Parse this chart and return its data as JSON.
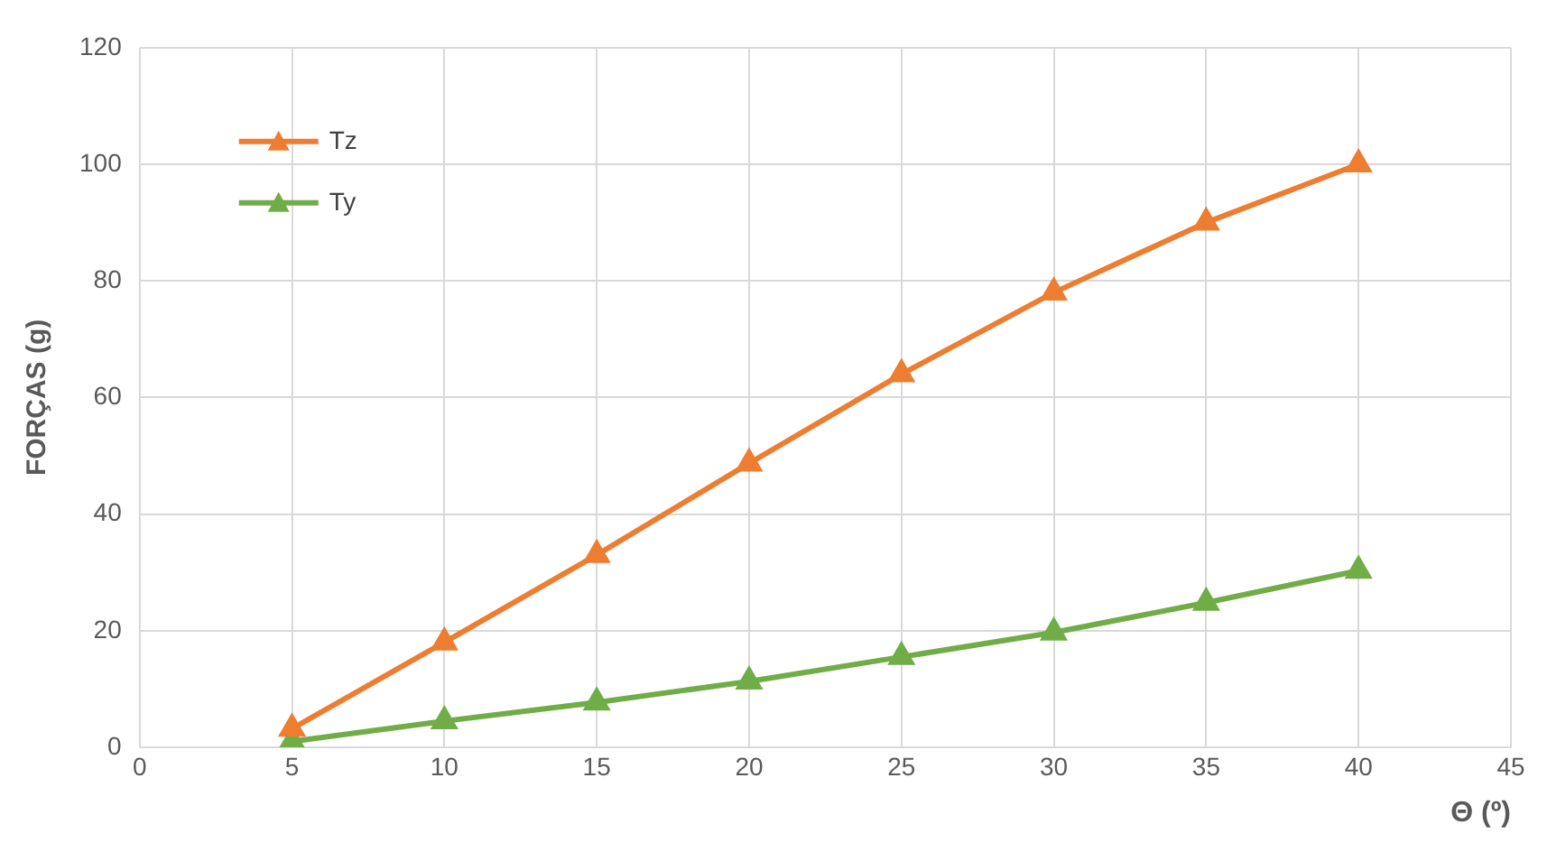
{
  "chart_data": {
    "type": "line",
    "ylabel": "FORÇAS (g)",
    "xlabel": "Θ (º)",
    "x": [
      5,
      10,
      15,
      20,
      25,
      30,
      35,
      40
    ],
    "series": [
      {
        "name": "Tz",
        "color": "#ed7d31",
        "values": [
          3.2,
          18,
          33,
          48.7,
          64,
          78,
          90,
          100
        ]
      },
      {
        "name": "Ty",
        "color": "#70ad47",
        "values": [
          1,
          4.5,
          7.7,
          11.3,
          15.5,
          19.7,
          24.8,
          30.3
        ]
      }
    ],
    "xlim": [
      0,
      45
    ],
    "xticks": [
      0,
      5,
      10,
      15,
      20,
      25,
      30,
      35,
      40,
      45
    ],
    "ylim": [
      0,
      120
    ],
    "yticks": [
      0,
      20,
      40,
      60,
      80,
      100,
      120
    ],
    "grid": true,
    "legend": "top left",
    "marker": "triangle",
    "line_style": "solid"
  }
}
